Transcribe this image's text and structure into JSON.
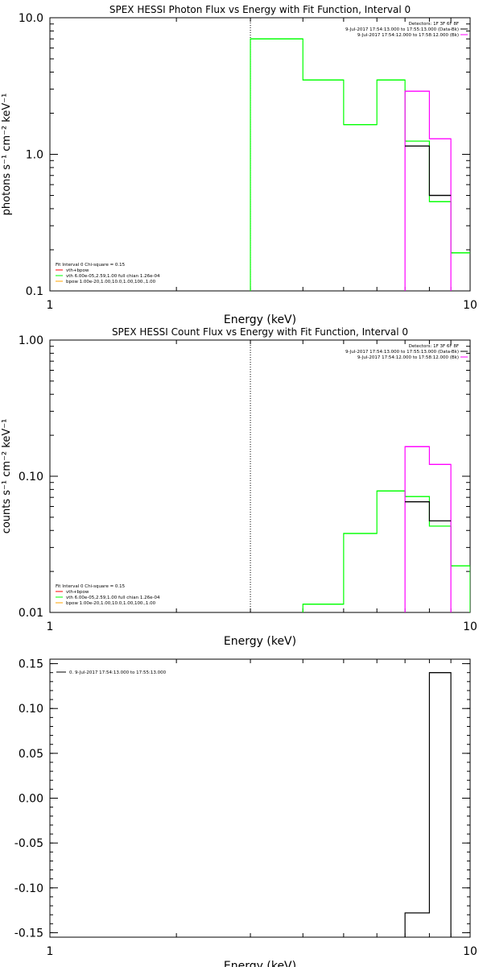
{
  "colors": {
    "background": "#ffffff",
    "axis": "#000000",
    "data": "#000000",
    "total_fit": "#ff0000",
    "vth": "#00ff00",
    "bpow": "#ffa500",
    "magenta": "#ff00ff",
    "green": "#00ff00"
  },
  "chart_data": [
    {
      "type": "line",
      "title": "SPEX HESSI Photon Flux vs Energy with Fit Function, Interval 0",
      "xlabel": "Energy (keV)",
      "ylabel": "photons s⁻¹ cm⁻² keV⁻¹",
      "x_scale": "log",
      "y_scale": "log",
      "xlim": [
        1,
        10
      ],
      "ylim": [
        0.1,
        10
      ],
      "x_ticks": [
        {
          "v": 1,
          "label": "1"
        },
        {
          "v": 10,
          "label": "10"
        }
      ],
      "y_ticks": [
        {
          "v": 0.1,
          "label": "0.1"
        },
        {
          "v": 1,
          "label": "1.0"
        },
        {
          "v": 10,
          "label": "10.0"
        }
      ],
      "vline": 3,
      "legend_topright": [
        {
          "text": "Detectors: 1F 3F 6F 8F",
          "color": ""
        },
        {
          "text": "9-Jul-2017 17:54:13.000 to 17:55:13.000 (Data-Bk)",
          "color": "#000000"
        },
        {
          "text": "9-Jul-2017 17:54:12.000 to 17:58:12.000 (Bk)",
          "color": "#ff00ff"
        }
      ],
      "legend_bottomleft": [
        {
          "text": "Fit Interval 0   Chi-square = 0.15",
          "color": ""
        },
        {
          "text": "vth+bpow",
          "color": "#ff0000"
        },
        {
          "text": "vth 6.00e-05,2.59,1.00  full chian 1.26e-04",
          "color": "#00ff00"
        },
        {
          "text": "bpow 1.00e-20,1.00,10.0,1.00,100.,1.00",
          "color": "#ffa500"
        }
      ],
      "series": [
        {
          "color": "#00ff00",
          "edges": [
            3.0,
            4.0,
            5.0,
            6.0,
            7.0,
            8.0,
            9.0,
            10.0
          ],
          "values": [
            7.0,
            3.5,
            1.65,
            3.5,
            1.25,
            0.45,
            0.19
          ],
          "close_left": true
        },
        {
          "color": "#ff00ff",
          "edges": [
            7.0,
            8.0,
            9.0
          ],
          "values": [
            2.9,
            1.3
          ],
          "close_left": true,
          "close_right": true
        },
        {
          "color": "#000000",
          "edges": [
            7.0,
            8.0,
            9.0
          ],
          "values": [
            1.15,
            0.5
          ]
        }
      ]
    },
    {
      "type": "line",
      "title": "SPEX HESSI Count Flux vs Energy with Fit Function, Interval 0",
      "xlabel": "Energy (keV)",
      "ylabel": "counts s⁻¹ cm⁻² keV⁻¹",
      "x_scale": "log",
      "y_scale": "log",
      "xlim": [
        1,
        10
      ],
      "ylim": [
        0.01,
        1
      ],
      "x_ticks": [
        {
          "v": 1,
          "label": "1"
        },
        {
          "v": 10,
          "label": "10"
        }
      ],
      "y_ticks": [
        {
          "v": 0.01,
          "label": "0.01"
        },
        {
          "v": 0.1,
          "label": "0.10"
        },
        {
          "v": 1,
          "label": "1.00"
        }
      ],
      "vline": 3,
      "legend_topright": [
        {
          "text": "Detectors: 1F 3F 6F 8F",
          "color": ""
        },
        {
          "text": "9-Jul-2017 17:54:13.000 to 17:55:13.000 (Data-Bk)",
          "color": "#000000"
        },
        {
          "text": "9-Jul-2017 17:54:12.000 to 17:58:12.000 (Bk)",
          "color": "#ff00ff"
        }
      ],
      "legend_bottomleft": [
        {
          "text": "Fit Interval 0   Chi-square = 0.15",
          "color": ""
        },
        {
          "text": "vth+bpow",
          "color": "#ff0000"
        },
        {
          "text": "vth 6.00e-05,2.59,1.00  full chian 1.26e-04",
          "color": "#00ff00"
        },
        {
          "text": "bpow 1.00e-20,1.00,10.0,1.00,100.,1.00",
          "color": "#ffa500"
        }
      ],
      "series": [
        {
          "color": "#00ff00",
          "edges": [
            4.0,
            5.0,
            6.0,
            7.0,
            8.0,
            9.0,
            10.0
          ],
          "values": [
            0.0115,
            0.038,
            0.078,
            0.071,
            0.043,
            0.022
          ],
          "close_left": true,
          "close_right": true
        },
        {
          "color": "#ff00ff",
          "edges": [
            7.0,
            8.0,
            9.0
          ],
          "values": [
            0.165,
            0.122
          ],
          "close_left": true,
          "close_right": true
        },
        {
          "color": "#000000",
          "edges": [
            7.0,
            8.0,
            9.0
          ],
          "values": [
            0.065,
            0.047
          ]
        }
      ]
    },
    {
      "type": "line",
      "title": "",
      "xlabel": "Energy (keV)",
      "ylabel": "",
      "x_scale": "log",
      "y_scale": "linear",
      "xlim": [
        1,
        10
      ],
      "ylim": [
        -0.155,
        0.155
      ],
      "x_ticks": [
        {
          "v": 1,
          "label": "1"
        },
        {
          "v": 10,
          "label": "10"
        }
      ],
      "y_ticks": [
        {
          "v": 0.15,
          "label": "0.15"
        },
        {
          "v": 0.1,
          "label": "0.10"
        },
        {
          "v": 0.05,
          "label": "0.05"
        },
        {
          "v": 0.0,
          "label": "0.00"
        },
        {
          "v": -0.05,
          "label": "-0.05"
        },
        {
          "v": -0.1,
          "label": "-0.10"
        },
        {
          "v": -0.15,
          "label": "-0.15"
        }
      ],
      "vline": null,
      "legend_topright": [],
      "legend_bottomleft": [],
      "legend_topleft": [
        {
          "text": "0.  9-Jul-2017 17:54:13.000 to 17:55:13.000",
          "color": "#000000"
        }
      ],
      "series": [
        {
          "color": "#000000",
          "edges": [
            7.0,
            8.0,
            9.0
          ],
          "values": [
            -0.128,
            0.14
          ],
          "close_right": true,
          "baseline_left": -0.155
        }
      ]
    }
  ]
}
